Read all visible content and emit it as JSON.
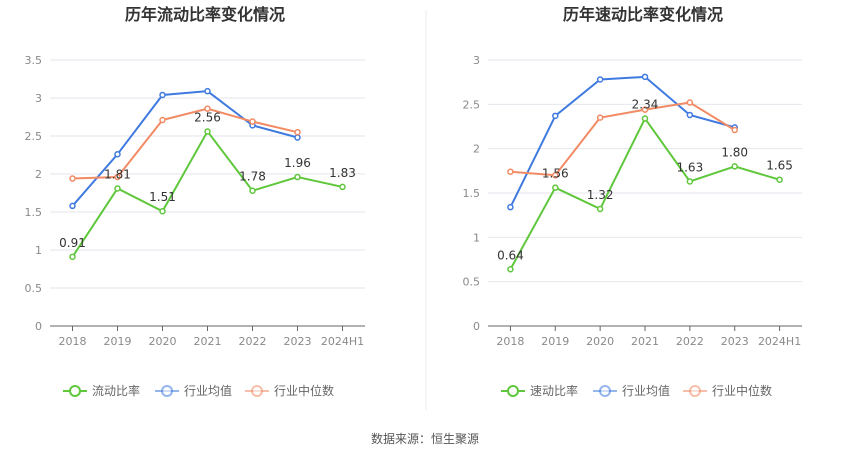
{
  "source": "数据来源：恒生聚源",
  "colors": {
    "primary": "#5fc73b",
    "industry_avg": "#3f7ae0",
    "industry_median": "#f28a64"
  },
  "chart_data": [
    {
      "type": "line",
      "title": "历年流动比率变化情况",
      "categories": [
        "2018",
        "2019",
        "2020",
        "2021",
        "2022",
        "2023",
        "2024H1"
      ],
      "ylim": [
        0,
        3.5
      ],
      "yticks": [
        "0",
        "0.5",
        "1",
        "1.5",
        "2",
        "2.5",
        "3",
        "3.5"
      ],
      "grid": true,
      "legend_position": "bottom",
      "series": [
        {
          "name": "流动比率",
          "values": [
            0.91,
            1.81,
            1.51,
            2.56,
            1.78,
            1.96,
            1.83
          ],
          "labels": [
            "0.91",
            "1.81",
            "1.51",
            "2.56",
            "1.78",
            "1.96",
            "1.83"
          ]
        },
        {
          "name": "行业均值",
          "values": [
            1.58,
            2.26,
            3.04,
            3.09,
            2.64,
            2.48,
            null
          ]
        },
        {
          "name": "行业中位数",
          "values": [
            1.94,
            1.96,
            2.71,
            2.86,
            2.69,
            2.55,
            null
          ]
        }
      ]
    },
    {
      "type": "line",
      "title": "历年速动比率变化情况",
      "categories": [
        "2018",
        "2019",
        "2020",
        "2021",
        "2022",
        "2023",
        "2024H1"
      ],
      "ylim": [
        0,
        3
      ],
      "yticks": [
        "0",
        "0.5",
        "1",
        "1.5",
        "2",
        "2.5",
        "3"
      ],
      "grid": true,
      "legend_position": "bottom",
      "series": [
        {
          "name": "速动比率",
          "values": [
            0.64,
            1.56,
            1.32,
            2.34,
            1.63,
            1.8,
            1.65
          ],
          "labels": [
            "0.64",
            "1.56",
            "1.32",
            "2.34",
            "1.63",
            "1.80",
            "1.65"
          ]
        },
        {
          "name": "行业均值",
          "values": [
            1.34,
            2.37,
            2.78,
            2.81,
            2.38,
            2.24,
            null
          ]
        },
        {
          "name": "行业中位数",
          "values": [
            1.74,
            1.7,
            2.35,
            2.44,
            2.52,
            2.21,
            null
          ]
        }
      ]
    }
  ]
}
